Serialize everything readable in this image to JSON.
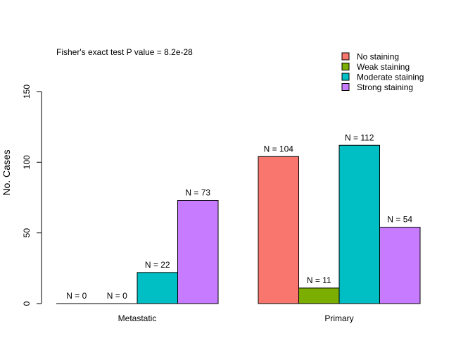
{
  "chart_data": {
    "type": "bar",
    "annotation": "Fisher's exact test P value = 8.2e-28",
    "ylabel": "No. Cases",
    "xlabel": "",
    "ylim": [
      0,
      150
    ],
    "yticks": [
      0,
      50,
      100,
      150
    ],
    "categories": [
      "Metastatic",
      "Primary"
    ],
    "series": [
      {
        "name": "No staining",
        "color": "#F8766D",
        "values": [
          0,
          104
        ],
        "labels": [
          "N = 0",
          "N = 104"
        ]
      },
      {
        "name": "Weak staining",
        "color": "#7CAE00",
        "values": [
          0,
          11
        ],
        "labels": [
          "N = 0",
          "N = 11"
        ]
      },
      {
        "name": "Moderate staining",
        "color": "#00BFC4",
        "values": [
          22,
          112
        ],
        "labels": [
          "N = 22",
          "N = 112"
        ]
      },
      {
        "name": "Strong staining",
        "color": "#C77CFF",
        "values": [
          73,
          54
        ],
        "labels": [
          "N = 73",
          "N = 54"
        ]
      }
    ],
    "legend_position": "top-right",
    "grid": false
  }
}
